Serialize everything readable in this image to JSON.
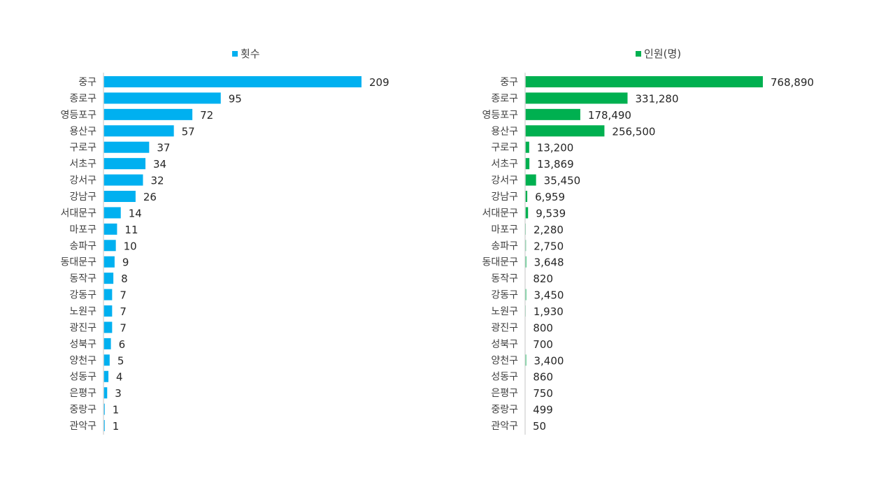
{
  "chart_data": [
    {
      "type": "bar",
      "orientation": "horizontal",
      "legend_position": "top",
      "categories": [
        "중구",
        "종로구",
        "영등포구",
        "용산구",
        "구로구",
        "서초구",
        "강서구",
        "강남구",
        "서대문구",
        "마포구",
        "송파구",
        "동대문구",
        "동작구",
        "강동구",
        "노원구",
        "광진구",
        "성북구",
        "양천구",
        "성동구",
        "은평구",
        "중랑구",
        "관악구"
      ],
      "series": [
        {
          "name": "횟수",
          "color": "#00b0f0",
          "values": [
            209,
            95,
            72,
            57,
            37,
            34,
            32,
            26,
            14,
            11,
            10,
            9,
            8,
            7,
            7,
            7,
            6,
            5,
            4,
            3,
            1,
            1
          ],
          "labels": [
            "209",
            "95",
            "72",
            "57",
            "37",
            "34",
            "32",
            "26",
            "14",
            "11",
            "10",
            "9",
            "8",
            "7",
            "7",
            "7",
            "6",
            "5",
            "4",
            "3",
            "1",
            "1"
          ]
        }
      ],
      "xlim": [
        0,
        209
      ]
    },
    {
      "type": "bar",
      "orientation": "horizontal",
      "legend_position": "top",
      "categories": [
        "중구",
        "종로구",
        "영등포구",
        "용산구",
        "구로구",
        "서초구",
        "강서구",
        "강남구",
        "서대문구",
        "마포구",
        "송파구",
        "동대문구",
        "동작구",
        "강동구",
        "노원구",
        "광진구",
        "성북구",
        "양천구",
        "성동구",
        "은평구",
        "중랑구",
        "관악구"
      ],
      "series": [
        {
          "name": "인원(명)",
          "color": "#00b050",
          "values": [
            768890,
            331280,
            178490,
            256500,
            13200,
            13869,
            35450,
            6959,
            9539,
            2280,
            2750,
            3648,
            820,
            3450,
            1930,
            800,
            700,
            3400,
            860,
            750,
            499,
            50
          ],
          "labels": [
            "768,890",
            "331,280",
            "178,490",
            "256,500",
            "13,200",
            "13,869",
            "35,450",
            "6,959",
            "9,539",
            "2,280",
            "2,750",
            "3,648",
            "820",
            "3,450",
            "1,930",
            "800",
            "700",
            "3,400",
            "860",
            "750",
            "499",
            "50"
          ]
        }
      ],
      "xlim": [
        0,
        768890
      ]
    }
  ]
}
